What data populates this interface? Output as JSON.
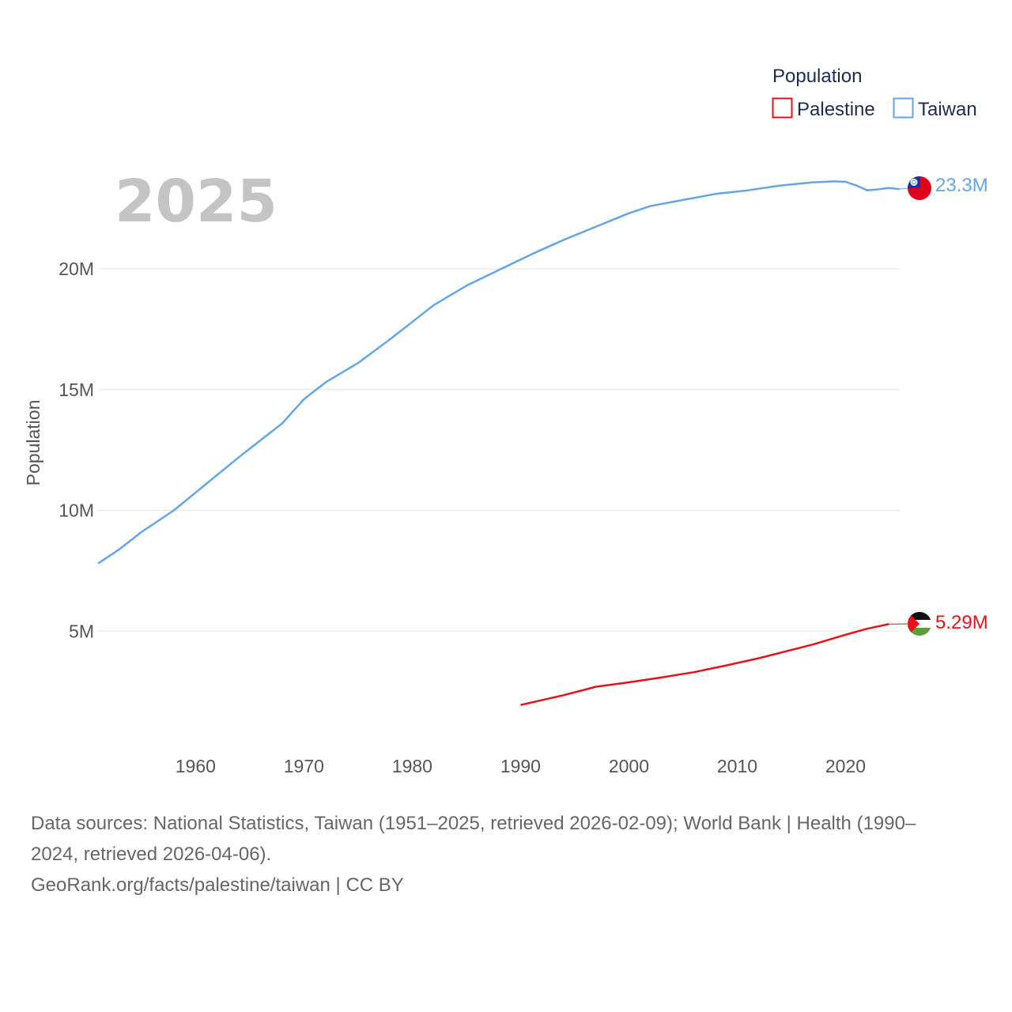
{
  "chart_data": {
    "type": "line",
    "year_label": "2025",
    "ylabel": "Population",
    "ylim": [
      0,
      25000000
    ],
    "xlim": [
      1951,
      2025
    ],
    "y_ticks": [
      {
        "value": 5000000,
        "label": "5M"
      },
      {
        "value": 10000000,
        "label": "10M"
      },
      {
        "value": 15000000,
        "label": "15M"
      },
      {
        "value": 20000000,
        "label": "20M"
      }
    ],
    "x_ticks": [
      {
        "value": 1960,
        "label": "1960"
      },
      {
        "value": 1970,
        "label": "1970"
      },
      {
        "value": 1980,
        "label": "1980"
      },
      {
        "value": 1990,
        "label": "1990"
      },
      {
        "value": 2000,
        "label": "2000"
      },
      {
        "value": 2010,
        "label": "2010"
      },
      {
        "value": 2020,
        "label": "2020"
      }
    ],
    "legend": {
      "title": "Population",
      "position": "top-right",
      "entries": [
        {
          "name": "Palestine",
          "color": "#e8111b"
        },
        {
          "name": "Taiwan",
          "color": "#64a6e4"
        }
      ]
    },
    "series": [
      {
        "name": "Taiwan",
        "color": "#64a6e4",
        "end_label": "23.3M",
        "flag": "taiwan-flag-icon",
        "points": [
          [
            1951,
            7800000
          ],
          [
            1953,
            8400000
          ],
          [
            1955,
            9100000
          ],
          [
            1958,
            10000000
          ],
          [
            1961,
            11100000
          ],
          [
            1964,
            12200000
          ],
          [
            1966,
            12900000
          ],
          [
            1968,
            13600000
          ],
          [
            1970,
            14600000
          ],
          [
            1972,
            15300000
          ],
          [
            1975,
            16100000
          ],
          [
            1978,
            17100000
          ],
          [
            1980,
            17800000
          ],
          [
            1982,
            18500000
          ],
          [
            1985,
            19300000
          ],
          [
            1988,
            19950000
          ],
          [
            1991,
            20600000
          ],
          [
            1994,
            21200000
          ],
          [
            1997,
            21750000
          ],
          [
            2000,
            22300000
          ],
          [
            2002,
            22600000
          ],
          [
            2005,
            22850000
          ],
          [
            2008,
            23100000
          ],
          [
            2011,
            23250000
          ],
          [
            2014,
            23450000
          ],
          [
            2017,
            23580000
          ],
          [
            2019,
            23620000
          ],
          [
            2020,
            23600000
          ],
          [
            2021,
            23450000
          ],
          [
            2022,
            23250000
          ],
          [
            2023,
            23290000
          ],
          [
            2024,
            23350000
          ],
          [
            2025,
            23300000
          ]
        ]
      },
      {
        "name": "Palestine",
        "color": "#e8111b",
        "end_label": "5.29M",
        "flag": "palestine-flag-icon",
        "points": [
          [
            1990,
            1940000
          ],
          [
            1994,
            2350000
          ],
          [
            1997,
            2700000
          ],
          [
            2000,
            2880000
          ],
          [
            2003,
            3080000
          ],
          [
            2006,
            3300000
          ],
          [
            2009,
            3580000
          ],
          [
            2012,
            3880000
          ],
          [
            2017,
            4450000
          ],
          [
            2020,
            4850000
          ],
          [
            2022,
            5100000
          ],
          [
            2024,
            5290000
          ]
        ]
      }
    ]
  },
  "footer": {
    "line1": "Data sources: National Statistics, Taiwan (1951–2025, retrieved 2026-02-09); World Bank | Health (1990–",
    "line2": "2024, retrieved 2026-04-06).",
    "line3": "GeoRank.org/facts/palestine/taiwan | CC BY"
  }
}
